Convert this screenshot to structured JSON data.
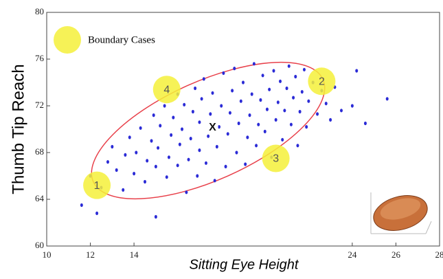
{
  "chart_data": {
    "type": "scatter",
    "x_label": "Sitting Eye Height",
    "y_label": "Thumb Tip Reach",
    "xlim": [
      10,
      28
    ],
    "ylim": [
      60,
      80
    ],
    "xticks": [
      10,
      12,
      14,
      24,
      26,
      28
    ],
    "yticks": [
      60,
      64,
      68,
      72,
      76,
      80
    ],
    "series": [
      {
        "color": "#2b2bd6",
        "x": [
          12.0,
          12.5,
          12.8,
          13.0,
          13.2,
          13.5,
          13.6,
          13.8,
          14.0,
          14.1,
          14.3,
          14.5,
          14.6,
          14.8,
          14.9,
          15.0,
          15.1,
          15.2,
          15.4,
          15.5,
          15.6,
          15.7,
          15.8,
          16.0,
          16.0,
          16.1,
          16.2,
          16.3,
          16.4,
          16.5,
          16.6,
          16.7,
          16.8,
          16.9,
          17.0,
          17.0,
          17.1,
          17.2,
          17.3,
          17.4,
          17.5,
          17.6,
          17.7,
          17.8,
          17.9,
          18.0,
          18.1,
          18.2,
          18.3,
          18.4,
          18.5,
          18.6,
          18.7,
          18.8,
          18.9,
          19.0,
          19.1,
          19.2,
          19.3,
          19.4,
          19.5,
          19.6,
          19.7,
          19.8,
          19.9,
          20.0,
          20.1,
          20.2,
          20.3,
          20.4,
          20.5,
          20.6,
          20.7,
          20.8,
          20.9,
          21.0,
          21.1,
          21.2,
          21.3,
          21.4,
          21.5,
          21.6,
          21.7,
          21.8,
          21.9,
          22.0,
          22.2,
          22.4,
          22.6,
          22.8,
          23.0,
          23.2,
          23.5,
          24.0,
          24.2,
          24.6,
          25.6,
          11.6,
          12.3,
          15.0
        ],
        "y": [
          66.0,
          65.0,
          67.2,
          68.5,
          66.5,
          64.8,
          67.8,
          69.3,
          66.2,
          68.0,
          70.1,
          65.5,
          67.3,
          69.0,
          71.2,
          66.8,
          68.4,
          70.3,
          72.0,
          65.9,
          67.6,
          69.5,
          71.0,
          73.0,
          66.9,
          68.7,
          70.0,
          72.1,
          64.6,
          67.4,
          69.2,
          71.5,
          73.5,
          66.0,
          68.2,
          70.6,
          72.6,
          74.3,
          67.1,
          69.4,
          71.3,
          73.1,
          65.6,
          68.5,
          70.2,
          72.0,
          74.8,
          66.8,
          69.6,
          71.4,
          73.3,
          75.2,
          68.0,
          70.5,
          72.4,
          74.0,
          67.0,
          69.3,
          71.2,
          73.0,
          75.6,
          68.6,
          70.4,
          72.5,
          74.6,
          69.8,
          71.7,
          73.4,
          67.6,
          75.0,
          70.8,
          72.3,
          74.1,
          69.1,
          71.6,
          73.5,
          75.4,
          70.4,
          72.7,
          74.5,
          68.6,
          71.5,
          73.2,
          75.1,
          70.2,
          72.4,
          74.0,
          71.3,
          73.3,
          72.2,
          70.8,
          73.6,
          71.6,
          72.0,
          75.0,
          70.5,
          72.6,
          63.5,
          62.8,
          62.5
        ]
      }
    ],
    "boundary_cases": {
      "name": "Boundary Cases",
      "color": "#f5f03a",
      "points": [
        {
          "label": "1",
          "x": 12.3,
          "y": 65.2
        },
        {
          "label": "2",
          "x": 22.6,
          "y": 74.1
        },
        {
          "label": "3",
          "x": 20.5,
          "y": 67.5
        },
        {
          "label": "4",
          "x": 15.5,
          "y": 73.4
        }
      ]
    },
    "center": {
      "label": "X",
      "x": 17.6,
      "y": 70.2
    }
  }
}
